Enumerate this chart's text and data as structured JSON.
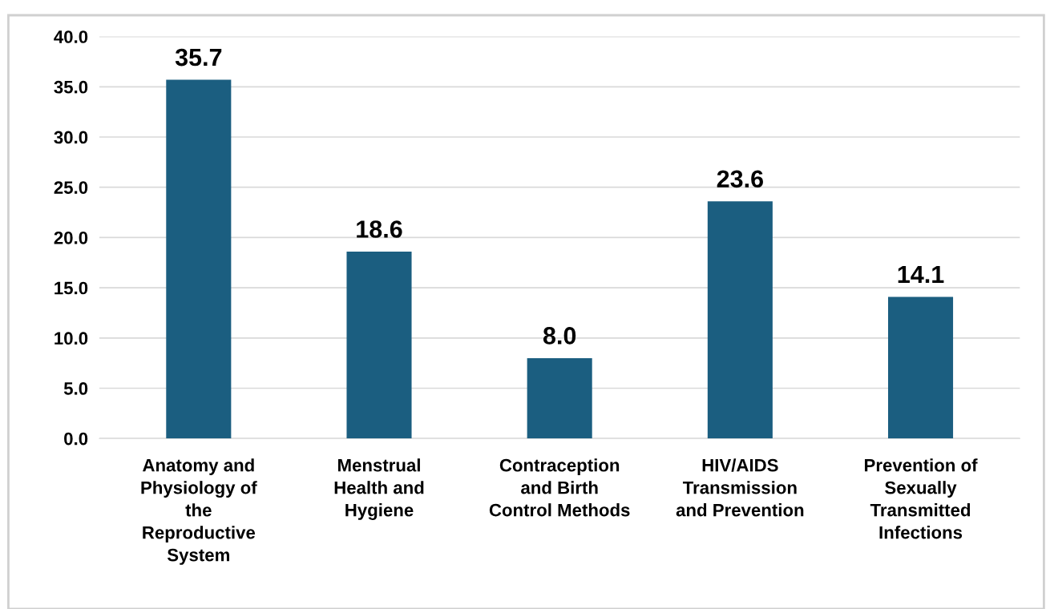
{
  "chart_data": {
    "type": "bar",
    "categories": [
      "Anatomy and\nPhysiology of\nthe\nReproductive\nSystem",
      "Menstrual\nHealth and\nHygiene",
      "Contraception\nand Birth\nControl Methods",
      "HIV/AIDS\nTransmission\nand Prevention",
      "Prevention of\nSexually\nTransmitted\nInfections"
    ],
    "values": [
      35.7,
      18.6,
      8.0,
      23.6,
      14.1
    ],
    "value_labels": [
      "35.7",
      "18.6",
      "8.0",
      "23.6",
      "14.1"
    ],
    "color": "#1b5e80",
    "ylim": [
      0,
      40
    ],
    "yticks": [
      {
        "value": 0,
        "label": "0.0"
      },
      {
        "value": 5,
        "label": "5.0"
      },
      {
        "value": 10,
        "label": "10.0"
      },
      {
        "value": 15,
        "label": "15.0"
      },
      {
        "value": 20,
        "label": "20.0"
      },
      {
        "value": 25,
        "label": "25.0"
      },
      {
        "value": 30,
        "label": "30.0"
      },
      {
        "value": 35,
        "label": "35.0"
      },
      {
        "value": 40,
        "label": "40.0"
      }
    ],
    "grid": "y"
  }
}
